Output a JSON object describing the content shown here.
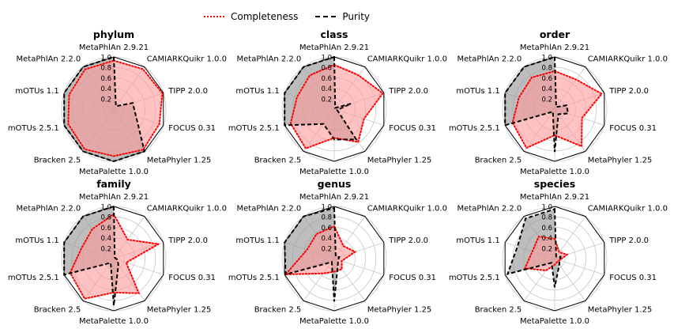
{
  "legend": {
    "completeness": "Completeness",
    "purity": "Purity",
    "completeness_color": "#ff0000",
    "purity_color": "#000000"
  },
  "chart_data": {
    "type": "radar",
    "rlim": [
      0,
      1
    ],
    "radial_ticks": [
      "0.2",
      "0.4",
      "0.6",
      "0.8",
      "1.0"
    ],
    "radial_tick_values": [
      0.2,
      0.4,
      0.6,
      0.8,
      1.0
    ],
    "categories": [
      "MetaPhlAn 2.9.21",
      "CAMIARKQuikr 1.0.0",
      "TIPP 2.0.0",
      "FOCUS 0.31",
      "MetaPhyler 1.25",
      "MetaPalette 1.0.0",
      "Bracken 2.5",
      "mOTUs 2.5.1",
      "mOTUs 1.1",
      "MetaPhlAn 2.2.0"
    ],
    "fill_colors": {
      "completeness": "#ff9999",
      "purity": "#999999"
    },
    "legend_position": "upper center",
    "grid": true,
    "panels": [
      {
        "title": "phylum",
        "series": [
          {
            "name": "Completeness",
            "values": [
              0.93,
              0.95,
              0.98,
              0.92,
              0.96,
              0.9,
              0.95,
              0.92,
              0.9,
              0.94
            ]
          },
          {
            "name": "Purity",
            "values": [
              1.0,
              0.07,
              0.38,
              0.45,
              1.0,
              1.0,
              1.0,
              1.0,
              1.0,
              1.0
            ]
          }
        ]
      },
      {
        "title": "class",
        "series": [
          {
            "name": "Completeness",
            "values": [
              0.85,
              0.8,
              0.98,
              0.6,
              0.78,
              0.55,
              0.93,
              0.88,
              0.75,
              0.8
            ]
          },
          {
            "name": "Purity",
            "values": [
              1.0,
              0.03,
              0.34,
              0.06,
              0.72,
              0.58,
              0.35,
              1.0,
              1.0,
              1.0
            ]
          }
        ]
      },
      {
        "title": "order",
        "series": [
          {
            "name": "Completeness",
            "values": [
              0.73,
              0.7,
              0.95,
              0.55,
              0.88,
              0.5,
              0.92,
              0.85,
              0.72,
              0.75
            ]
          },
          {
            "name": "Purity",
            "values": [
              1.0,
              0.05,
              0.24,
              0.27,
              0.12,
              0.82,
              0.06,
              1.0,
              1.0,
              1.0
            ]
          }
        ]
      },
      {
        "title": "family",
        "series": [
          {
            "name": "Completeness",
            "values": [
              0.85,
              0.45,
              0.9,
              0.25,
              0.82,
              0.65,
              0.95,
              0.88,
              0.65,
              0.7
            ]
          },
          {
            "name": "Purity",
            "values": [
              1.0,
              0.03,
              0.03,
              0.08,
              0.15,
              0.9,
              0.1,
              1.0,
              1.0,
              1.0
            ]
          }
        ]
      },
      {
        "title": "genus",
        "series": [
          {
            "name": "Completeness",
            "values": [
              0.62,
              0.3,
              0.42,
              0.15,
              0.25,
              0.25,
              0.35,
              0.98,
              0.55,
              0.58
            ]
          },
          {
            "name": "Purity",
            "values": [
              0.97,
              0.05,
              0.1,
              0.08,
              0.12,
              0.82,
              0.08,
              0.98,
              1.0,
              1.0
            ]
          }
        ]
      },
      {
        "title": "species",
        "series": [
          {
            "name": "Completeness",
            "values": [
              0.38,
              0.15,
              0.25,
              0.1,
              0.08,
              0.12,
              0.28,
              0.6,
              0.45,
              0.52
            ]
          },
          {
            "name": "Purity",
            "values": [
              0.95,
              0.05,
              0.12,
              0.1,
              0.15,
              0.55,
              0.1,
              0.95,
              0.75,
              0.95
            ]
          }
        ]
      }
    ]
  }
}
